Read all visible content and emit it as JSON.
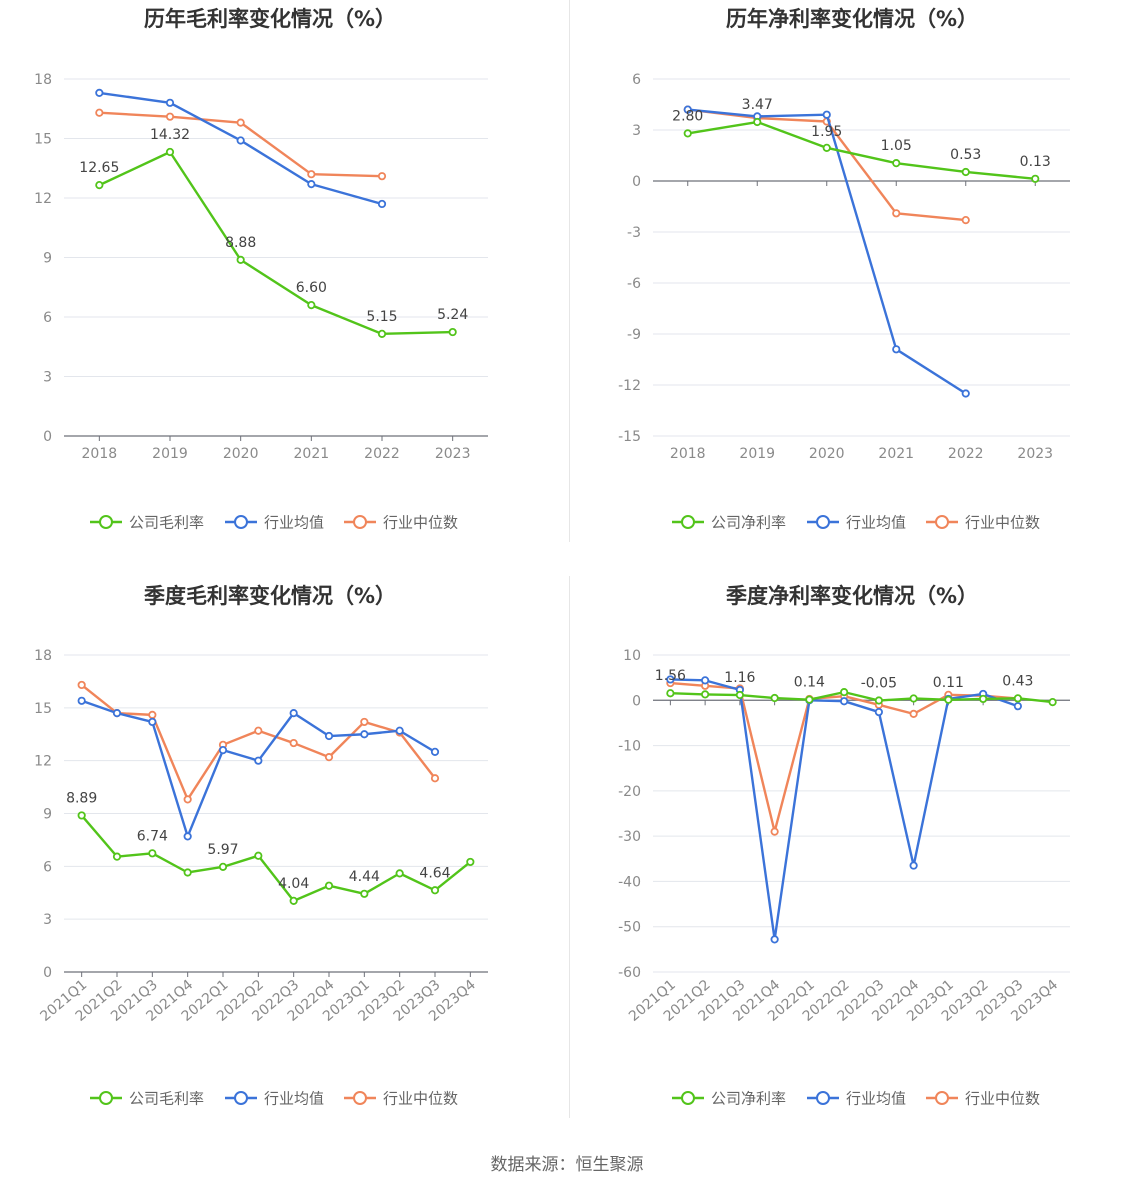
{
  "colors": {
    "company": "#52c41a",
    "industry_avg": "#3b73d9",
    "industry_median": "#f0855a"
  },
  "legend_icon": "circle-line-icon",
  "source_text": "数据来源：恒生聚源",
  "chart_data": [
    {
      "type": "line",
      "title": "历年毛利率变化情况（%）",
      "categories": [
        "2018",
        "2019",
        "2020",
        "2021",
        "2022",
        "2023"
      ],
      "ylim": [
        0,
        18
      ],
      "yticks": [
        "0",
        "3",
        "6",
        "9",
        "12",
        "15",
        "18"
      ],
      "grid": true,
      "legend_position": "bottom",
      "series": [
        {
          "name": "公司毛利率",
          "key": "company",
          "values": [
            12.65,
            14.32,
            8.88,
            6.6,
            5.15,
            5.24
          ],
          "labels": [
            "12.65",
            "14.32",
            "8.88",
            "6.60",
            "5.15",
            "5.24"
          ]
        },
        {
          "name": "行业均值",
          "key": "industry_avg",
          "values": [
            17.3,
            16.8,
            14.9,
            12.7,
            11.7,
            null
          ]
        },
        {
          "name": "行业中位数",
          "key": "industry_median",
          "values": [
            16.3,
            16.1,
            15.8,
            13.2,
            13.1,
            null
          ]
        }
      ]
    },
    {
      "type": "line",
      "title": "历年净利率变化情况（%）",
      "categories": [
        "2018",
        "2019",
        "2020",
        "2021",
        "2022",
        "2023"
      ],
      "ylim": [
        -15,
        6
      ],
      "yticks": [
        "-15",
        "-12",
        "-9",
        "-6",
        "-3",
        "0",
        "3",
        "6"
      ],
      "grid": true,
      "legend_position": "bottom",
      "series": [
        {
          "name": "公司净利率",
          "key": "company",
          "values": [
            2.8,
            3.47,
            1.95,
            1.05,
            0.53,
            0.13
          ],
          "labels": [
            "2.80",
            "3.47",
            "1.95",
            "1.05",
            "0.53",
            "0.13"
          ]
        },
        {
          "name": "行业均值",
          "key": "industry_avg",
          "values": [
            4.2,
            3.8,
            3.9,
            -9.9,
            -12.5,
            null
          ]
        },
        {
          "name": "行业中位数",
          "key": "industry_median",
          "values": [
            4.2,
            3.7,
            3.5,
            -1.9,
            -2.3,
            null
          ]
        }
      ]
    },
    {
      "type": "line",
      "title": "季度毛利率变化情况（%）",
      "categories": [
        "2021Q1",
        "2021Q2",
        "2021Q3",
        "2021Q4",
        "2022Q1",
        "2022Q2",
        "2022Q3",
        "2022Q4",
        "2023Q1",
        "2023Q2",
        "2023Q3",
        "2023Q4"
      ],
      "ylim": [
        0,
        18
      ],
      "yticks": [
        "0",
        "3",
        "6",
        "9",
        "12",
        "15",
        "18"
      ],
      "grid": true,
      "legend_position": "bottom",
      "series": [
        {
          "name": "公司毛利率",
          "key": "company",
          "values": [
            8.89,
            6.55,
            6.74,
            5.65,
            5.97,
            6.6,
            4.04,
            4.9,
            4.44,
            5.6,
            4.64,
            6.25
          ],
          "labels": [
            "8.89",
            "",
            "6.74",
            "",
            "5.97",
            "",
            "4.04",
            "",
            "4.44",
            "",
            "4.64",
            ""
          ]
        },
        {
          "name": "行业均值",
          "key": "industry_avg",
          "values": [
            15.4,
            14.7,
            14.2,
            7.7,
            12.6,
            12.0,
            14.7,
            13.4,
            13.5,
            13.7,
            12.5,
            null
          ]
        },
        {
          "name": "行业中位数",
          "key": "industry_median",
          "values": [
            16.3,
            14.7,
            14.6,
            9.8,
            12.9,
            13.7,
            13.0,
            12.2,
            14.2,
            13.6,
            11.0,
            null
          ]
        }
      ]
    },
    {
      "type": "line",
      "title": "季度净利率变化情况（%）",
      "categories": [
        "2021Q1",
        "2021Q2",
        "2021Q3",
        "2021Q4",
        "2022Q1",
        "2022Q2",
        "2022Q3",
        "2022Q4",
        "2023Q1",
        "2023Q2",
        "2023Q3",
        "2023Q4"
      ],
      "ylim": [
        -60,
        10
      ],
      "yticks": [
        "-60",
        "-50",
        "-40",
        "-30",
        "-20",
        "-10",
        "0",
        "10"
      ],
      "grid": true,
      "legend_position": "bottom",
      "series": [
        {
          "name": "公司净利率",
          "key": "company",
          "values": [
            1.56,
            1.3,
            1.16,
            0.5,
            0.14,
            1.8,
            -0.05,
            0.4,
            0.11,
            0.3,
            0.43,
            -0.4
          ],
          "labels": [
            "1.56",
            "",
            "1.16",
            "",
            "0.14",
            "",
            "-0.05",
            "",
            "0.11",
            "",
            "0.43",
            ""
          ]
        },
        {
          "name": "行业均值",
          "key": "industry_avg",
          "values": [
            4.6,
            4.4,
            2.3,
            -52.8,
            0.0,
            -0.2,
            -2.6,
            -36.5,
            0.3,
            1.4,
            -1.3,
            null
          ]
        },
        {
          "name": "行业中位数",
          "key": "industry_median",
          "values": [
            3.8,
            3.2,
            2.6,
            -29.0,
            0.3,
            0.9,
            -1.0,
            -3.0,
            1.2,
            1.0,
            0.4,
            null
          ]
        }
      ]
    }
  ]
}
